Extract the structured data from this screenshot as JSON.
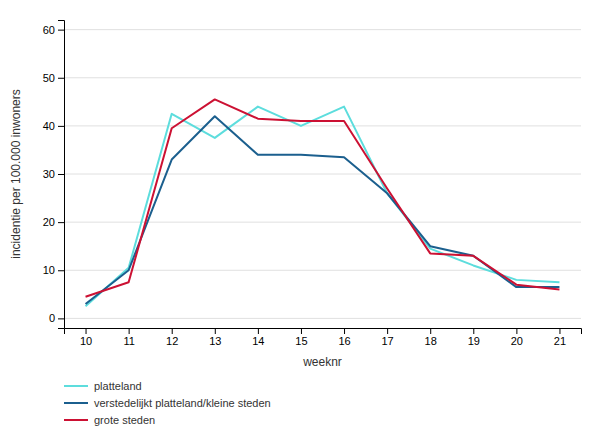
{
  "chart_data": {
    "type": "line",
    "x": [
      10,
      11,
      12,
      13,
      14,
      15,
      16,
      17,
      18,
      19,
      20,
      21
    ],
    "series": [
      {
        "name": "platteland",
        "color": "#5DDDDD",
        "values": [
          2.5,
          10.5,
          42.5,
          37.5,
          44.0,
          40.0,
          44.0,
          26.0,
          14.5,
          11.0,
          8.0,
          7.5
        ]
      },
      {
        "name": "verstedelijkt platteland/kleine steden",
        "color": "#1B5F8E",
        "values": [
          3.0,
          10.0,
          33.0,
          42.0,
          34.0,
          34.0,
          33.5,
          26.0,
          15.0,
          13.0,
          6.5,
          6.5
        ]
      },
      {
        "name": "grote steden",
        "color": "#CC1133",
        "values": [
          4.5,
          7.5,
          39.5,
          45.5,
          41.5,
          41.0,
          41.0,
          27.0,
          13.5,
          13.0,
          7.0,
          6.0
        ]
      }
    ],
    "x_label": "weeknr",
    "y_label": "incidentie per 100.000 inwoners",
    "xlim": [
      9.5,
      21.5
    ],
    "xticks": [
      10,
      11,
      12,
      13,
      14,
      15,
      16,
      17,
      18,
      19,
      20,
      21
    ],
    "ylim": [
      -2,
      62
    ],
    "yticks": [
      0,
      10,
      20,
      30,
      40,
      50,
      60
    ],
    "grid": true,
    "legend": "bottom"
  }
}
